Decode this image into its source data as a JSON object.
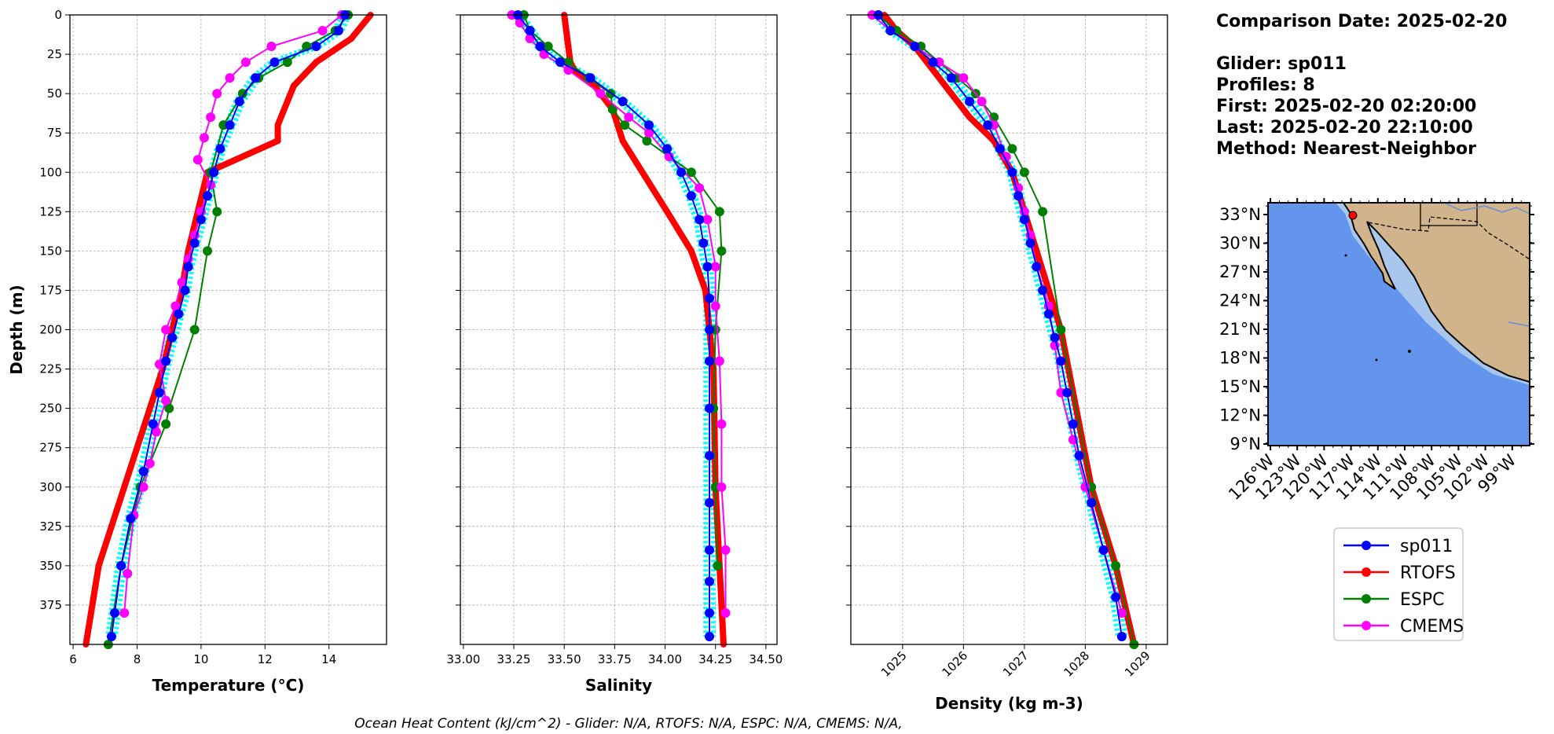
{
  "info": {
    "comparison_date": "Comparison Date: 2025-02-20",
    "glider": "Glider: sp011",
    "profiles": "Profiles: 8",
    "first": "First: 2025-02-20 02:20:00",
    "last": "Last: 2025-02-20 22:10:00",
    "method": "Method: Nearest-Neighbor"
  },
  "footer": "Ocean Heat Content (kJ/cm^2) - Glider: N/A,  RTOFS: N/A,  ESPC: N/A,  CMEMS: N/A,",
  "colors": {
    "sp011": "#0000ff",
    "RTOFS": "#ff0000",
    "ESPC": "#008000",
    "CMEMS": "#ff00ff",
    "glider_spread": "#00ffff",
    "ocean": "#6495ed",
    "land": "#d2b48c",
    "shelf": "#a9c7ec"
  },
  "chart_data": [
    {
      "type": "line",
      "ylabel": "Depth (m)",
      "xlabel": "Temperature (°C)",
      "xlim": [
        5.9,
        15.8
      ],
      "ylim": [
        400,
        0
      ],
      "xticks": [
        "6",
        "8",
        "10",
        "12",
        "14"
      ],
      "yticks": [
        "0",
        "25",
        "50",
        "75",
        "100",
        "125",
        "150",
        "175",
        "200",
        "225",
        "250",
        "275",
        "300",
        "325",
        "350",
        "375"
      ],
      "grid": true,
      "series": [
        {
          "name": "sp011",
          "x": [
            14.5,
            14.3,
            13.6,
            12.3,
            11.7,
            11.2,
            10.9,
            10.6,
            10.4,
            10.2,
            10.0,
            9.8,
            9.6,
            9.5,
            9.3,
            9.1,
            8.9,
            8.7,
            8.5,
            8.2,
            7.8,
            7.5,
            7.3,
            7.2
          ],
          "y": [
            0,
            10,
            20,
            30,
            40,
            55,
            70,
            85,
            100,
            115,
            130,
            145,
            160,
            175,
            190,
            205,
            220,
            240,
            260,
            290,
            320,
            350,
            380,
            395
          ]
        },
        {
          "name": "RTOFS",
          "x": [
            15.3,
            14.7,
            13.6,
            12.9,
            12.6,
            12.4,
            12.4,
            10.2,
            9.9,
            9.6,
            9.4,
            9.1,
            8.8,
            8.4,
            8.0,
            7.6,
            7.2,
            6.8,
            6.4
          ],
          "y": [
            0,
            15,
            30,
            45,
            60,
            70,
            80,
            100,
            125,
            150,
            175,
            200,
            225,
            250,
            275,
            300,
            325,
            350,
            400
          ]
        },
        {
          "name": "ESPC",
          "x": [
            14.6,
            14.2,
            13.3,
            12.7,
            11.8,
            11.3,
            10.7,
            10.3,
            10.5,
            10.2,
            9.8,
            9.0,
            8.9,
            8.1,
            7.5,
            7.1
          ],
          "y": [
            0,
            10,
            20,
            30,
            40,
            50,
            70,
            100,
            125,
            150,
            200,
            250,
            260,
            300,
            350,
            400
          ]
        },
        {
          "name": "CMEMS",
          "x": [
            14.4,
            13.8,
            12.2,
            11.4,
            10.9,
            10.5,
            10.3,
            10.1,
            9.9,
            10.3,
            10.0,
            9.8,
            9.6,
            9.4,
            9.2,
            8.9,
            8.7,
            8.9,
            8.6,
            8.4,
            8.2,
            7.9,
            7.7,
            7.6
          ],
          "y": [
            0,
            10,
            20,
            30,
            40,
            50,
            65,
            78,
            92,
            108,
            125,
            140,
            155,
            170,
            185,
            200,
            222,
            245,
            265,
            285,
            300,
            318,
            355,
            380
          ]
        }
      ]
    },
    {
      "type": "line",
      "xlabel": "Salinity",
      "xlim": [
        32.985,
        34.555
      ],
      "ylim": [
        400,
        0
      ],
      "xticks": [
        "33.00",
        "33.25",
        "33.50",
        "33.75",
        "34.00",
        "34.25",
        "34.50"
      ],
      "grid": true,
      "series": [
        {
          "name": "sp011",
          "x": [
            33.27,
            33.33,
            33.38,
            33.48,
            33.63,
            33.79,
            33.92,
            34.01,
            34.08,
            34.13,
            34.17,
            34.19,
            34.21,
            34.22,
            34.22,
            34.22,
            34.22,
            34.22,
            34.22,
            34.22,
            34.22,
            34.22,
            34.22
          ],
          "y": [
            0,
            10,
            20,
            30,
            40,
            55,
            70,
            85,
            100,
            115,
            130,
            145,
            160,
            180,
            200,
            220,
            250,
            280,
            310,
            340,
            360,
            380,
            395
          ]
        },
        {
          "name": "RTOFS",
          "x": [
            33.5,
            33.52,
            33.53,
            33.55,
            33.65,
            33.74,
            33.79,
            34.01,
            34.13,
            34.2,
            34.24,
            34.25,
            34.27,
            34.29
          ],
          "y": [
            0,
            20,
            30,
            35,
            45,
            60,
            80,
            125,
            150,
            175,
            225,
            300,
            350,
            400
          ]
        },
        {
          "name": "ESPC",
          "x": [
            33.3,
            33.33,
            33.42,
            33.52,
            33.62,
            33.73,
            33.74,
            33.8,
            33.91,
            34.13,
            34.27,
            34.28,
            34.25,
            34.24,
            34.25,
            34.26
          ],
          "y": [
            0,
            10,
            20,
            30,
            40,
            50,
            60,
            70,
            80,
            100,
            125,
            150,
            200,
            250,
            300,
            350
          ]
        },
        {
          "name": "CMEMS",
          "x": [
            33.24,
            33.28,
            33.33,
            33.4,
            33.52,
            33.68,
            33.82,
            33.92,
            34.02,
            34.17,
            34.21,
            34.25,
            34.25,
            34.27,
            34.28,
            34.28,
            34.3,
            34.3
          ],
          "y": [
            0,
            5,
            15,
            25,
            35,
            50,
            65,
            75,
            90,
            110,
            130,
            160,
            185,
            220,
            260,
            300,
            340,
            380
          ]
        }
      ]
    },
    {
      "type": "line",
      "xlabel": "Density (kg m-3)",
      "xlim": [
        1024.15,
        1029.35
      ],
      "ylim": [
        400,
        0
      ],
      "xticks": [
        "1025",
        "1026",
        "1027",
        "1028",
        "1029"
      ],
      "grid": true,
      "series": [
        {
          "name": "sp011",
          "x": [
            1024.6,
            1024.8,
            1025.2,
            1025.5,
            1025.8,
            1026.1,
            1026.4,
            1026.6,
            1026.8,
            1026.9,
            1027.0,
            1027.1,
            1027.2,
            1027.3,
            1027.4,
            1027.5,
            1027.6,
            1027.7,
            1027.8,
            1027.9,
            1028.1,
            1028.3,
            1028.5,
            1028.6
          ],
          "y": [
            0,
            10,
            20,
            30,
            40,
            55,
            70,
            85,
            100,
            115,
            130,
            145,
            160,
            175,
            190,
            205,
            220,
            240,
            260,
            280,
            310,
            340,
            370,
            395
          ]
        },
        {
          "name": "RTOFS",
          "x": [
            1024.7,
            1024.9,
            1025.2,
            1025.5,
            1025.8,
            1026.1,
            1026.5,
            1026.8,
            1027.0,
            1027.2,
            1027.4,
            1027.6,
            1027.8,
            1028.1,
            1028.5,
            1028.8
          ],
          "y": [
            0,
            10,
            20,
            35,
            50,
            65,
            80,
            100,
            125,
            150,
            175,
            200,
            240,
            300,
            350,
            400
          ]
        },
        {
          "name": "ESPC",
          "x": [
            1024.6,
            1024.9,
            1025.3,
            1025.6,
            1025.9,
            1026.2,
            1026.5,
            1026.8,
            1027.0,
            1027.3,
            1027.6,
            1028.1,
            1028.5,
            1028.8
          ],
          "y": [
            0,
            10,
            20,
            30,
            40,
            50,
            65,
            85,
            100,
            125,
            200,
            300,
            350,
            400
          ]
        },
        {
          "name": "CMEMS",
          "x": [
            1024.5,
            1024.8,
            1025.2,
            1025.6,
            1026.0,
            1026.3,
            1026.5,
            1026.7,
            1026.9,
            1027.0,
            1027.1,
            1027.2,
            1027.4,
            1027.5,
            1027.6,
            1027.8,
            1028.0,
            1028.3,
            1028.6
          ],
          "y": [
            0,
            10,
            20,
            30,
            40,
            55,
            70,
            90,
            110,
            125,
            140,
            160,
            185,
            210,
            240,
            270,
            300,
            340,
            380
          ]
        }
      ]
    }
  ],
  "map": {
    "lat_labels": [
      "33°N",
      "30°N",
      "27°N",
      "24°N",
      "21°N",
      "18°N",
      "15°N",
      "12°N",
      "9°N"
    ],
    "lon_labels": [
      "126°W",
      "123°W",
      "120°W",
      "117°W",
      "114°W",
      "111°W",
      "108°W",
      "105°W",
      "102°W",
      "99°W"
    ],
    "glider_position": "32.8°N 118.2°W"
  },
  "legend": [
    "sp011",
    "RTOFS",
    "ESPC",
    "CMEMS"
  ]
}
